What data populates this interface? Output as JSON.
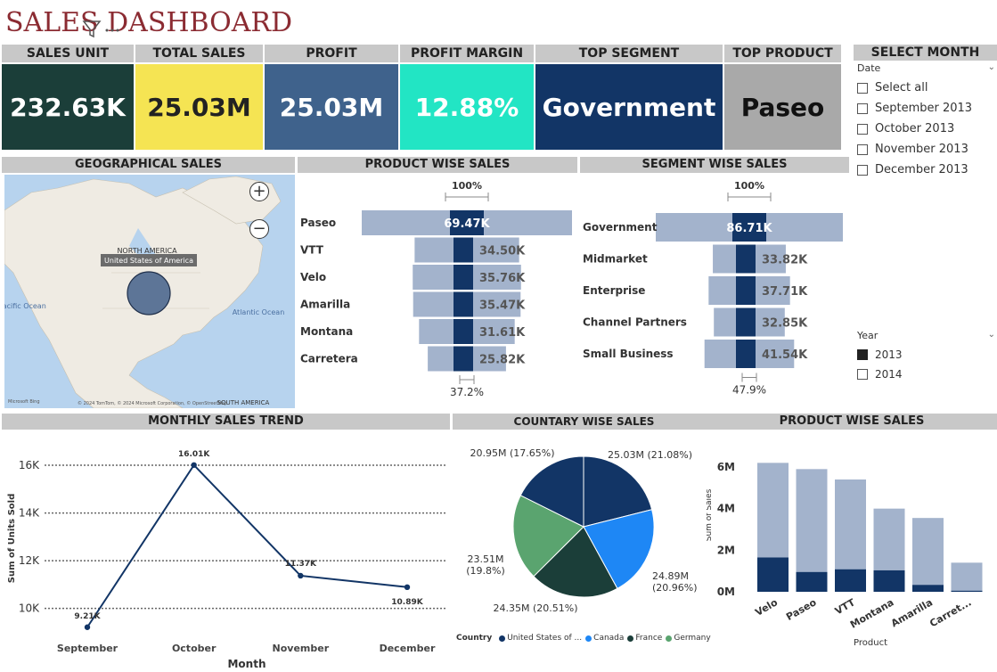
{
  "title": "SALES DASHBOARD",
  "kpis": [
    {
      "label": "SALES UNIT",
      "value": "232.63K",
      "bg": "#1b3e39",
      "fg": "#ffffff"
    },
    {
      "label": "TOTAL SALES",
      "value": "25.03M",
      "bg": "#f5e453",
      "fg": "#222222"
    },
    {
      "label": "PROFIT",
      "value": "25.03M",
      "bg": "#3f628c",
      "fg": "#ffffff"
    },
    {
      "label": "PROFIT MARGIN",
      "value": "12.88%",
      "bg": "#22e5c4",
      "fg": "#ffffff"
    },
    {
      "label": "TOP SEGMENT",
      "value": "Government",
      "bg": "#123566",
      "fg": "#ffffff"
    },
    {
      "label": "TOP PRODUCT",
      "value": "Paseo",
      "bg": "#a9a9a9",
      "fg": "#111111"
    }
  ],
  "select_month": {
    "header": "SELECT MONTH",
    "field": "Date",
    "options": [
      "Select all",
      "September 2013",
      "October 2013",
      "November 2013",
      "December 2013"
    ]
  },
  "year_slicer": {
    "field": "Year",
    "options": [
      {
        "label": "2013",
        "checked": true
      },
      {
        "label": "2014",
        "checked": false
      }
    ]
  },
  "geo": {
    "header": "GEOGRAPHICAL SALES",
    "continent": "NORTH AMERICA",
    "tooltip": "United States of America",
    "pacific": "Pacific Ocean",
    "atlantic": "Atlantic Ocean",
    "south_america": "SOUTH AMERICA",
    "attribution": "© 2024 TomTom, © 2024 Microsoft Corporation, © OpenStreetMap",
    "bing": "Microsoft Bing"
  },
  "product_funnel": {
    "header": "PRODUCT WISE SALES",
    "top_pct": "100%",
    "bottom_pct": "37.2%",
    "items": [
      {
        "label": "Paseo",
        "value": "69.47K",
        "frac": 1.0
      },
      {
        "label": "VTT",
        "value": "34.50K",
        "frac": 0.497
      },
      {
        "label": "Velo",
        "value": "35.76K",
        "frac": 0.515
      },
      {
        "label": "Amarilla",
        "value": "35.47K",
        "frac": 0.511
      },
      {
        "label": "Montana",
        "value": "31.61K",
        "frac": 0.455
      },
      {
        "label": "Carretera",
        "value": "25.82K",
        "frac": 0.372
      }
    ]
  },
  "segment_funnel": {
    "header": "SEGMENT WISE SALES",
    "top_pct": "100%",
    "bottom_pct": "47.9%",
    "items": [
      {
        "label": "Government",
        "value": "86.71K",
        "frac": 1.0
      },
      {
        "label": "Midmarket",
        "value": "33.82K",
        "frac": 0.39
      },
      {
        "label": "Enterprise",
        "value": "37.71K",
        "frac": 0.435
      },
      {
        "label": "Channel Partners",
        "value": "32.85K",
        "frac": 0.379
      },
      {
        "label": "Small Business",
        "value": "41.54K",
        "frac": 0.479
      }
    ]
  },
  "trend": {
    "header": "MONTHLY SALES TREND",
    "xlabel": "Month",
    "ylabel": "Sum of Units Sold"
  },
  "country": {
    "header": "COUNTARY WISE SALES",
    "legend_title": "Country",
    "legend": [
      "United States of ...",
      "Canada",
      "France",
      "Germany"
    ]
  },
  "product_bars": {
    "header": "PRODUCT WISE SALES",
    "xlabel": "Product",
    "ylabel": "Sum of Sales"
  },
  "colors": {
    "dark_navy": "#123566",
    "light_blue": "#a3b3cc",
    "bright_blue": "#1e87f5",
    "dark_green": "#1b3e39",
    "green": "#5aa46f"
  },
  "chart_data": [
    {
      "type": "line",
      "x": [
        "September",
        "October",
        "November",
        "December"
      ],
      "series": [
        {
          "values": [
            9210,
            16010,
            11370,
            10890
          ]
        }
      ],
      "data_labels": [
        "9.21K",
        "16.01K",
        "11.37K",
        "10.89K"
      ],
      "yticks": [
        "10K",
        "12K",
        "14K",
        "16K"
      ],
      "ylim": [
        9500,
        16600
      ],
      "xlabel": "Month",
      "ylabel": "Sum of Units Sold",
      "grid": true
    },
    {
      "type": "pie",
      "categories": [
        "United States of ...",
        "Canada",
        "France",
        "Germany"
      ],
      "values": [
        25.03,
        24.89,
        24.35,
        23.51
      ],
      "percent": [
        21.08,
        20.96,
        20.51,
        19.8
      ],
      "labels": [
        "25.03M (21.08%)",
        "24.89M (20.96%)",
        "24.35M (20.51%)",
        "23.51M (19.8%)",
        "20.95M (17.65%)"
      ],
      "extra_slice": {
        "value": 20.95,
        "percent": 17.65
      },
      "colors": [
        "#123566",
        "#1e87f5",
        "#1b3e39",
        "#5aa46f"
      ]
    },
    {
      "type": "bar",
      "categories": [
        "Velo",
        "Paseo",
        "VTT",
        "Montana",
        "Amarilla",
        "Carret..."
      ],
      "series": [
        {
          "values": [
            6.2,
            5.9,
            5.4,
            4.0,
            3.55,
            1.4
          ]
        },
        {
          "values": [
            1.65,
            0.95,
            1.08,
            1.03,
            0.33,
            0.05
          ]
        }
      ],
      "yticks": [
        "0M",
        "2M",
        "4M",
        "6M"
      ],
      "ylim": [
        0,
        6.6
      ],
      "xlabel": "Product",
      "ylabel": "Sum of Sales"
    }
  ]
}
